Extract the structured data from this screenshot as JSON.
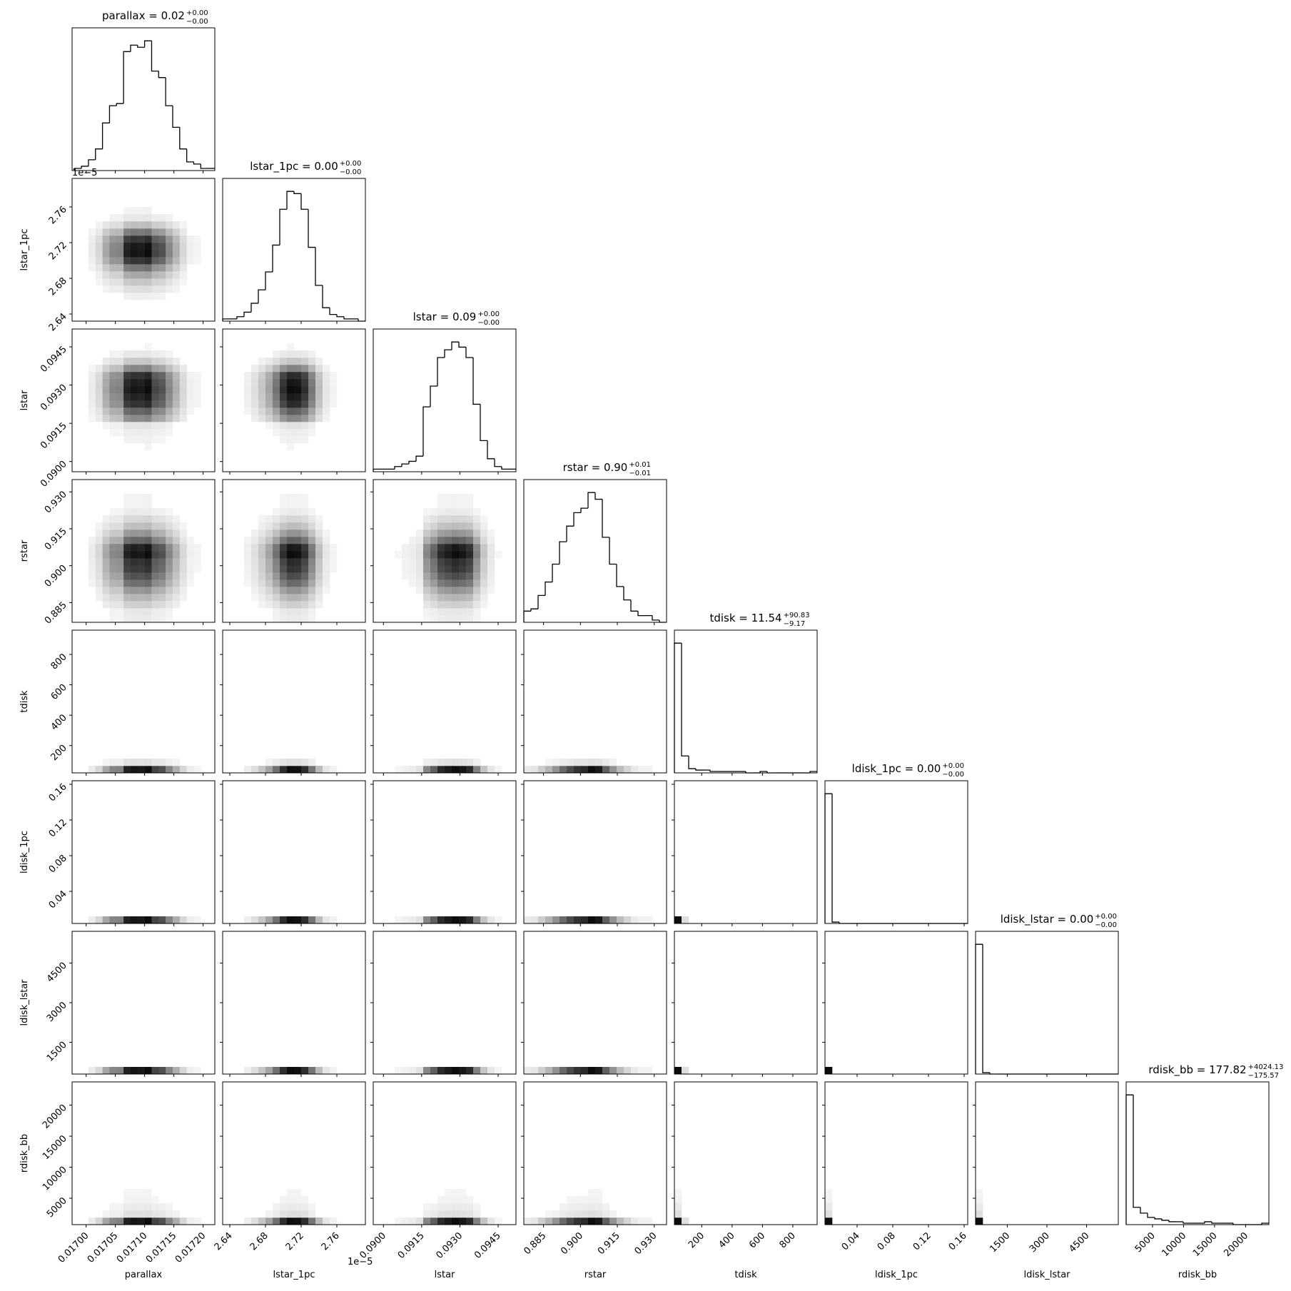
{
  "chart_data": {
    "type": "corner",
    "offset_text": "1e−5",
    "params": [
      {
        "name": "parallax",
        "title": "parallax = 0.02",
        "title_sup": "+0.00",
        "title_sub": "−0.00",
        "lim": [
          0.016976,
          0.01722
        ],
        "ticks": [
          {
            "value": 0.017,
            "label": "0.01700"
          },
          0.01705,
          {
            "value": 0.0171,
            "label": "0.01710"
          },
          0.01715,
          {
            "value": 0.0172,
            "label": "0.01720"
          }
        ],
        "bins": [
          0.01698,
          0.016992,
          0.017004,
          0.017016,
          0.017028,
          0.01704,
          0.017052,
          0.017064,
          0.017076,
          0.017088,
          0.0171,
          0.017112,
          0.017124,
          0.017136,
          0.017148,
          0.01716,
          0.017172,
          0.017184,
          0.017196,
          0.017208,
          0.01722
        ],
        "counts": [
          1,
          2,
          5,
          10,
          22,
          30,
          31,
          55,
          58,
          57,
          60,
          46,
          43,
          30,
          20,
          10,
          4,
          3,
          1,
          1
        ]
      },
      {
        "name": "lstar_1pc",
        "title": "lstar_1pc = 0.00",
        "title_sup": "+0.00",
        "title_sub": "−0.00",
        "lim": [
          2.632,
          2.792
        ],
        "ticks": [
          2.64,
          2.68,
          2.72,
          2.76
        ],
        "bins": [
          2.632,
          2.64,
          2.648,
          2.656,
          2.664,
          2.672,
          2.68,
          2.688,
          2.696,
          2.704,
          2.712,
          2.72,
          2.728,
          2.736,
          2.744,
          2.752,
          2.76,
          2.768,
          2.776,
          2.784,
          2.792
        ],
        "counts": [
          1,
          1,
          2,
          4,
          8,
          14,
          22,
          34,
          50,
          58,
          57,
          50,
          33,
          16,
          6,
          3,
          2,
          1,
          1,
          0
        ]
      },
      {
        "name": "lstar",
        "title": "lstar = 0.09",
        "title_sup": "+0.00",
        "title_sub": "−0.00",
        "lim": [
          0.0896,
          0.0952
        ],
        "ticks": [
          {
            "value": 0.09,
            "label": "0.0900"
          },
          0.0915,
          {
            "value": 0.093,
            "label": "0.0930"
          },
          0.0945
        ],
        "bins": [
          0.0896,
          0.08988,
          0.09016,
          0.09044,
          0.09072,
          0.091,
          0.09128,
          0.09156,
          0.09184,
          0.09212,
          0.0924,
          0.09268,
          0.09296,
          0.09324,
          0.09352,
          0.0938,
          0.09408,
          0.09436,
          0.09464,
          0.09492,
          0.0952
        ],
        "counts": [
          1,
          1,
          1,
          2,
          3,
          4,
          6,
          25,
          33,
          44,
          47,
          50,
          48,
          44,
          26,
          12,
          5,
          2,
          1,
          1
        ]
      },
      {
        "name": "rstar",
        "title": "rstar = 0.90",
        "title_sup": "+0.01",
        "title_sub": "−0.01",
        "lim": [
          0.877,
          0.935
        ],
        "ticks": [
          0.885,
          {
            "value": 0.9,
            "label": "0.900"
          },
          0.915,
          {
            "value": 0.93,
            "label": "0.930"
          }
        ],
        "bins": [
          0.877,
          0.8799,
          0.8828,
          0.8857,
          0.8886,
          0.8915,
          0.8944,
          0.8973,
          0.9002,
          0.9031,
          0.906,
          0.9089,
          0.9118,
          0.9147,
          0.9176,
          0.9205,
          0.9234,
          0.9263,
          0.9292,
          0.9321,
          0.935
        ],
        "counts": [
          5,
          6,
          12,
          18,
          26,
          36,
          43,
          49,
          51,
          58,
          55,
          38,
          26,
          16,
          10,
          5,
          3,
          3,
          1,
          0
        ]
      },
      {
        "name": "tdisk",
        "title": "tdisk = 11.54",
        "title_sup": "+90.83",
        "title_sub": "−9.17",
        "lim": [
          20,
          960
        ],
        "ticks": [
          200,
          400,
          600,
          800
        ],
        "bins": [
          20,
          67,
          114,
          161,
          208,
          255,
          302,
          349,
          396,
          443,
          490,
          537,
          584,
          631,
          678,
          725,
          772,
          819,
          866,
          913,
          960
        ],
        "counts": [
          92,
          12,
          3,
          2,
          2,
          1,
          1,
          1,
          1,
          1,
          0,
          0,
          1,
          0,
          0,
          0,
          0,
          0,
          0,
          1
        ]
      },
      {
        "name": "ldisk_1pc",
        "title": "ldisk_1pc = 0.00",
        "title_sup": "+0.00",
        "title_sub": "−0.00",
        "lim": [
          0.004,
          0.164
        ],
        "ticks": [
          0.04,
          0.08,
          0.12,
          0.16
        ],
        "bins": [
          0.004,
          0.012,
          0.02,
          0.028,
          0.036,
          0.044,
          0.052,
          0.06,
          0.068,
          0.076,
          0.084,
          0.092,
          0.1,
          0.108,
          0.116,
          0.124,
          0.132,
          0.14,
          0.148,
          0.156,
          0.164
        ],
        "counts": [
          95,
          1,
          0,
          0,
          0,
          0,
          0,
          0,
          0,
          0,
          0,
          0,
          0,
          0,
          0,
          0,
          0,
          0,
          0,
          0
        ]
      },
      {
        "name": "ldisk_lstar",
        "title": "ldisk_lstar = 0.00",
        "title_sup": "+0.00",
        "title_sub": "−0.00",
        "lim": [
          300,
          5700
        ],
        "ticks": [
          1500,
          3000,
          4500
        ],
        "bins": [
          300,
          570,
          840,
          1110,
          1380,
          1650,
          1920,
          2190,
          2460,
          2730,
          3000,
          3270,
          3540,
          3810,
          4080,
          4350,
          4620,
          4890,
          5160,
          5430,
          5700
        ],
        "counts": [
          95,
          1,
          0,
          0,
          0,
          0,
          0,
          0,
          0,
          0,
          0,
          0,
          0,
          0,
          0,
          0,
          0,
          0,
          0,
          0
        ]
      },
      {
        "name": "rdisk_bb",
        "title": "rdisk_bb = 177.82",
        "title_sup": "+4024.13",
        "title_sub": "−175.57",
        "lim": [
          750,
          23750
        ],
        "ticks": [
          5000,
          10000,
          15000,
          20000
        ],
        "bins": [
          750,
          1900,
          3050,
          4200,
          5350,
          6500,
          7650,
          8800,
          9950,
          11100,
          12250,
          13400,
          14550,
          15700,
          16850,
          18000,
          19150,
          20300,
          21450,
          22600,
          23750
        ],
        "counts": [
          90,
          12,
          8,
          5,
          4,
          3,
          2,
          2,
          1,
          1,
          1,
          2,
          1,
          1,
          1,
          0,
          0,
          0,
          0,
          1
        ]
      }
    ]
  }
}
